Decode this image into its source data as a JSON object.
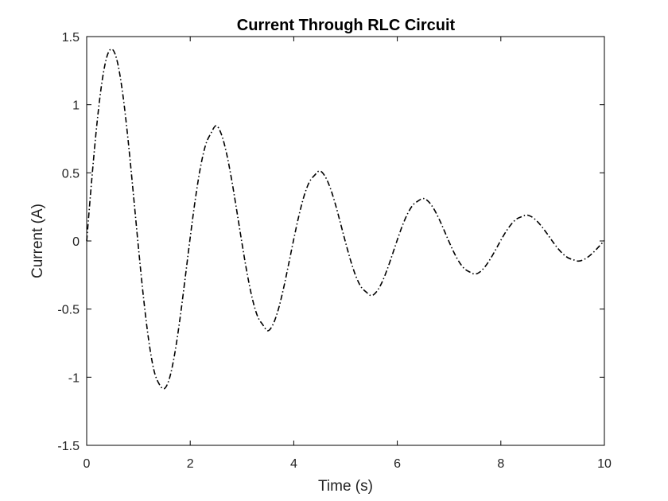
{
  "chart_data": {
    "type": "line",
    "title": "Current Through RLC Circuit",
    "xlabel": "Time (s)",
    "ylabel": "Current (A)",
    "xlim": [
      0,
      10
    ],
    "ylim": [
      -1.5,
      1.5
    ],
    "xticks": [
      0,
      2,
      4,
      6,
      8,
      10
    ],
    "xtick_labels": [
      "0",
      "2",
      "4",
      "6",
      "8",
      "10"
    ],
    "yticks": [
      -1.5,
      -1,
      -0.5,
      0,
      0.5,
      1,
      1.5
    ],
    "ytick_labels": [
      "-1.5",
      "-1",
      "-0.5",
      "0",
      "0.5",
      "1",
      "1.5"
    ],
    "grid": false,
    "line_style": "dash-dot",
    "line_color": "#000000",
    "series": [
      {
        "x": [
          0,
          0.1,
          0.2,
          0.3,
          0.4,
          0.5,
          0.6,
          0.7,
          0.8,
          0.9,
          1.0,
          1.1,
          1.2,
          1.3,
          1.4,
          1.5,
          1.6,
          1.7,
          1.8,
          1.9,
          2.0,
          2.1,
          2.2,
          2.3,
          2.4,
          2.5,
          2.6,
          2.7,
          2.8,
          2.9,
          3.0,
          3.1,
          3.2,
          3.3,
          3.4,
          3.5,
          3.6,
          3.7,
          3.8,
          3.9,
          4.0,
          4.1,
          4.2,
          4.3,
          4.4,
          4.5,
          4.6,
          4.7,
          4.8,
          4.9,
          5.0,
          5.1,
          5.2,
          5.3,
          5.4,
          5.5,
          5.6,
          5.7,
          5.8,
          5.9,
          6.0,
          6.1,
          6.2,
          6.3,
          6.4,
          6.5,
          6.6,
          6.7,
          6.8,
          6.9,
          7.0,
          7.1,
          7.2,
          7.3,
          7.4,
          7.5,
          7.6,
          7.7,
          7.8,
          7.9,
          8.0,
          8.1,
          8.2,
          8.3,
          8.4,
          8.5,
          8.6,
          8.7,
          8.8,
          8.9,
          9.0,
          9.1,
          9.2,
          9.3,
          9.4,
          9.5,
          9.6,
          9.7,
          9.8,
          9.9,
          10.0
        ],
        "y": [
          0,
          0.459,
          0.867,
          1.179,
          1.364,
          1.405,
          1.302,
          1.07,
          0.74,
          0.352,
          -0.049,
          -0.424,
          -0.734,
          -0.95,
          -1.05,
          -1.084,
          -1.007,
          -0.829,
          -0.577,
          -0.28,
          0.026,
          0.31,
          0.545,
          0.708,
          0.79,
          0.846,
          0.785,
          0.646,
          0.45,
          0.22,
          -0.017,
          -0.24,
          -0.424,
          -0.552,
          -0.614,
          -0.659,
          -0.612,
          -0.505,
          -0.352,
          -0.172,
          0.013,
          0.187,
          0.331,
          0.432,
          0.481,
          0.514,
          0.477,
          0.394,
          0.275,
          0.134,
          -0.01,
          -0.146,
          -0.259,
          -0.337,
          -0.375,
          -0.401,
          -0.372,
          -0.307,
          -0.214,
          -0.105,
          0.008,
          0.114,
          0.201,
          0.263,
          0.293,
          0.312,
          0.29,
          0.239,
          0.167,
          0.082,
          -0.006,
          -0.089,
          -0.157,
          -0.205,
          -0.228,
          -0.243,
          -0.226,
          -0.186,
          -0.13,
          -0.064,
          0.005,
          0.069,
          0.122,
          0.16,
          0.178,
          0.19,
          0.176,
          0.145,
          0.101,
          0.05,
          -0.004,
          -0.054,
          -0.095,
          -0.124,
          -0.138,
          -0.148,
          -0.137,
          -0.113,
          -0.079,
          -0.039,
          0.003
        ]
      }
    ]
  }
}
